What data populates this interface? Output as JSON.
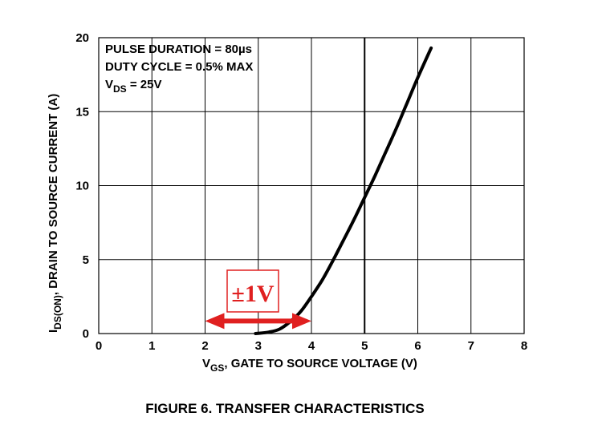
{
  "chart_data": {
    "type": "line",
    "title": "FIGURE 6.  TRANSFER CHARACTERISTICS",
    "xlabel": {
      "main": "V",
      "sub": "GS",
      "rest": ", GATE TO SOURCE VOLTAGE (V)"
    },
    "ylabel": {
      "main": "I",
      "sub": "DS(ON)",
      "rest": ", DRAIN TO SOURCE CURRENT (A)"
    },
    "xlim": [
      0,
      8
    ],
    "ylim": [
      0,
      20
    ],
    "x_ticks": [
      0,
      1,
      2,
      3,
      4,
      5,
      6,
      7,
      8
    ],
    "y_ticks": [
      0,
      5,
      10,
      15,
      20
    ],
    "grid": true,
    "emphasized_gridline_x": 5,
    "conditions": {
      "line1": "PULSE DURATION = 80µs",
      "line2": "DUTY CYCLE = 0.5% MAX",
      "line3": {
        "main": "V",
        "sub": "DS",
        "rest": " = 25V"
      }
    },
    "series": [
      {
        "x": [
          2.95,
          3.2,
          3.4,
          3.6,
          3.8,
          4.0,
          4.2,
          4.4,
          4.6,
          4.8,
          5.0,
          5.2,
          5.4,
          5.6,
          5.8,
          6.0,
          6.25
        ],
        "y": [
          0.0,
          0.1,
          0.3,
          0.8,
          1.5,
          2.5,
          3.6,
          4.9,
          6.3,
          7.7,
          9.2,
          10.7,
          12.3,
          13.9,
          15.6,
          17.3,
          19.3
        ]
      }
    ],
    "annotation": {
      "text": "±1V",
      "color": "#e02020",
      "arrow_from_x": 2.0,
      "arrow_to_x": 4.0,
      "arrow_y": 0.85
    }
  }
}
